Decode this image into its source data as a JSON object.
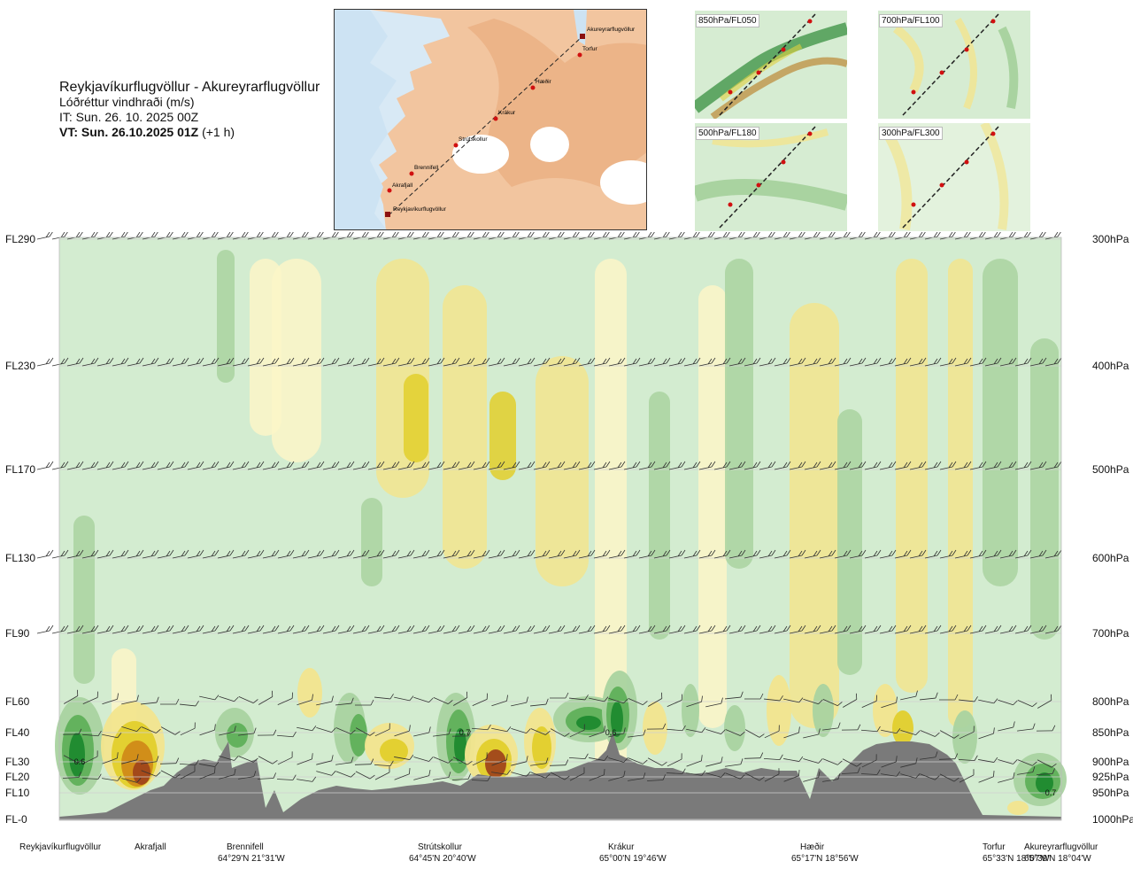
{
  "header": {
    "route": "Reykjavíkurflugvöllur - Akureyrarflugvöllur",
    "parameter": "Lóðréttur vindhraði (m/s)",
    "issue_time": "IT: Sun. 26. 10. 2025 00Z",
    "valid_time_bold": "VT: Sun. 26.10.2025 01Z",
    "valid_offset": "(+1 h)"
  },
  "map": {
    "waypoints": [
      "Akureyrarflugvöllur",
      "Torfur",
      "Hæðir",
      "Krákur",
      "Strútskollur",
      "Brennifell",
      "Akrafjall",
      "Reykjavíkurflugvöllur"
    ]
  },
  "thumbnails": [
    {
      "label": "850hPa/FL050"
    },
    {
      "label": "700hPa/FL100"
    },
    {
      "label": "500hPa/FL180"
    },
    {
      "label": "300hPa/FL300"
    }
  ],
  "left_axis": [
    "FL290",
    "FL230",
    "FL170",
    "FL130",
    "FL90",
    "FL60",
    "FL40",
    "FL30",
    "FL20",
    "FL10",
    "FL-0"
  ],
  "right_axis": [
    "300hPa",
    "400hPa",
    "500hPa",
    "600hPa",
    "700hPa",
    "800hPa",
    "850hPa",
    "900hPa",
    "925hPa",
    "950hPa",
    "1000hPa"
  ],
  "locations": [
    {
      "name": "Reykjavíkurflugvöllur",
      "coord": ""
    },
    {
      "name": "Akrafjall",
      "coord": ""
    },
    {
      "name": "Brennifell",
      "coord": "64°29'N 21°31'W"
    },
    {
      "name": "Strútskollur",
      "coord": "64°45'N 20°40'W"
    },
    {
      "name": "Krákur",
      "coord": "65°00'N 19°46'W"
    },
    {
      "name": "Hæðir",
      "coord": "65°17'N 18°56'W"
    },
    {
      "name": "Torfur",
      "coord": "65°33'N 18°07'W"
    },
    {
      "name": "Akureyrarflugvöllur",
      "coord": "65°39'N 18°04'W"
    }
  ],
  "chart_data": {
    "type": "heatmap",
    "title": "Lóðréttur vindhraði (m/s)",
    "xlabel": "",
    "ylabel": "",
    "y_levels_hpa": [
      300,
      400,
      500,
      600,
      700,
      800,
      850,
      900,
      925,
      950,
      1000
    ],
    "y_levels_fl": [
      "FL290",
      "FL230",
      "FL170",
      "FL130",
      "FL90",
      "FL60",
      "FL40",
      "FL30",
      "FL20",
      "FL10",
      "FL-0"
    ],
    "x_categories": [
      "Reykjavíkurflugvöllur",
      "Akrafjall",
      "Brennifell",
      "Strútskollur",
      "Krákur",
      "Hæðir",
      "Torfur",
      "Akureyrarflugvöllur"
    ],
    "colors": {
      "strong_up": "#1e8a2e",
      "up": "#5fb05a",
      "weak_up": "#a9d3a0",
      "neutral_up": "#d3ecd0",
      "neutral_down": "#fbf6c8",
      "weak_down": "#f2e58e",
      "down": "#e2cf2c",
      "strong_down": "#d08a18",
      "very_strong_down": "#a0461a",
      "terrain": "#7a7a7a"
    },
    "annotations": [
      {
        "text": "0.6",
        "x": "Reykjavíkurflugvöllur",
        "level_hpa": 900
      },
      {
        "text": "0.7",
        "x": "Strútskollur",
        "level_hpa": 850
      },
      {
        "text": "0.6",
        "x": "Krákur",
        "level_hpa": 850
      },
      {
        "text": "0.7",
        "x": "Akureyrarflugvöllur",
        "level_hpa": 950
      }
    ],
    "grid": true
  }
}
